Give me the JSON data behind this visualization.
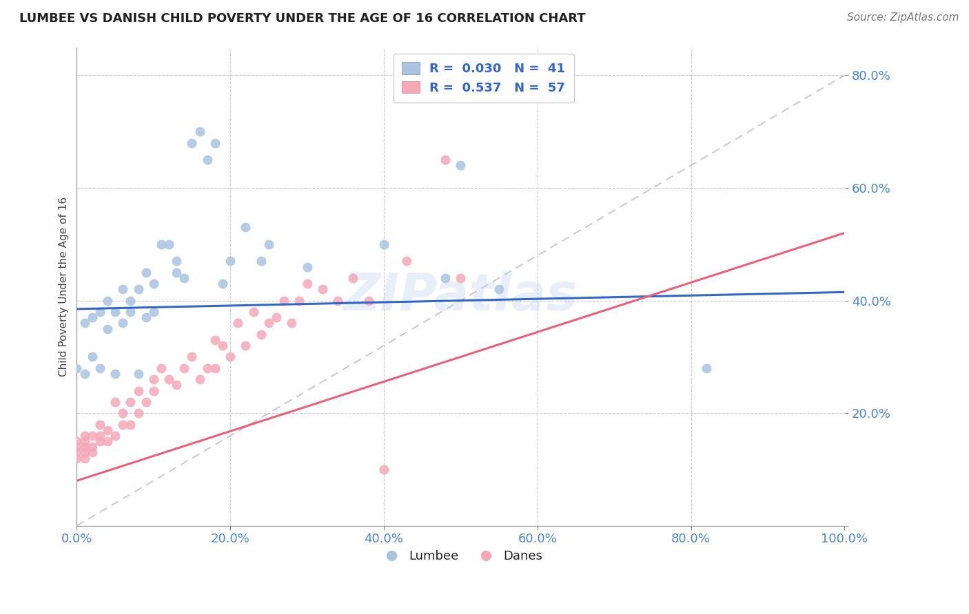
{
  "title": "LUMBEE VS DANISH CHILD POVERTY UNDER THE AGE OF 16 CORRELATION CHART",
  "source": "Source: ZipAtlas.com",
  "xlabel": "",
  "ylabel": "Child Poverty Under the Age of 16",
  "xlim": [
    0,
    1.0
  ],
  "ylim": [
    0.0,
    0.85
  ],
  "xticks": [
    0.0,
    0.2,
    0.4,
    0.6,
    0.8,
    1.0
  ],
  "yticks": [
    0.0,
    0.2,
    0.4,
    0.6,
    0.8
  ],
  "xticklabels": [
    "0.0%",
    "20.0%",
    "40.0%",
    "60.0%",
    "80.0%",
    "100.0%"
  ],
  "yticklabels": [
    "",
    "20.0%",
    "40.0%",
    "60.0%",
    "80.0%"
  ],
  "grid_color": "#cccccc",
  "background_color": "#ffffff",
  "watermark": "ZIPatlas",
  "lumbee_color": "#a8c4e0",
  "danes_color": "#f4a8b8",
  "lumbee_line_color": "#3366cc",
  "danes_line_color": "#e8607a",
  "diagonal_color": "#bbbbbb",
  "lumbee_R": "0.030",
  "lumbee_N": "41",
  "danes_R": "0.537",
  "danes_N": "57",
  "lumbee_line_start_y": 0.385,
  "lumbee_line_end_y": 0.415,
  "danes_line_start_y": 0.08,
  "danes_line_end_y": 0.52,
  "lumbee_x": [
    0.0,
    0.01,
    0.01,
    0.02,
    0.02,
    0.03,
    0.03,
    0.04,
    0.04,
    0.05,
    0.05,
    0.06,
    0.06,
    0.07,
    0.07,
    0.08,
    0.08,
    0.09,
    0.09,
    0.1,
    0.1,
    0.11,
    0.12,
    0.13,
    0.13,
    0.14,
    0.15,
    0.16,
    0.17,
    0.18,
    0.19,
    0.2,
    0.22,
    0.24,
    0.25,
    0.3,
    0.4,
    0.48,
    0.5,
    0.55,
    0.82
  ],
  "lumbee_y": [
    0.28,
    0.27,
    0.36,
    0.3,
    0.37,
    0.28,
    0.38,
    0.35,
    0.4,
    0.27,
    0.38,
    0.36,
    0.42,
    0.38,
    0.4,
    0.27,
    0.42,
    0.37,
    0.45,
    0.38,
    0.43,
    0.5,
    0.5,
    0.45,
    0.47,
    0.44,
    0.68,
    0.7,
    0.65,
    0.68,
    0.43,
    0.47,
    0.53,
    0.47,
    0.5,
    0.46,
    0.5,
    0.44,
    0.64,
    0.42,
    0.28
  ],
  "danes_x": [
    0.0,
    0.0,
    0.0,
    0.0,
    0.01,
    0.01,
    0.01,
    0.01,
    0.01,
    0.02,
    0.02,
    0.02,
    0.03,
    0.03,
    0.03,
    0.04,
    0.04,
    0.05,
    0.05,
    0.06,
    0.06,
    0.07,
    0.07,
    0.08,
    0.08,
    0.09,
    0.1,
    0.1,
    0.11,
    0.12,
    0.13,
    0.14,
    0.15,
    0.16,
    0.17,
    0.18,
    0.18,
    0.19,
    0.2,
    0.21,
    0.22,
    0.23,
    0.24,
    0.25,
    0.26,
    0.27,
    0.28,
    0.29,
    0.3,
    0.32,
    0.34,
    0.36,
    0.38,
    0.4,
    0.43,
    0.48,
    0.5
  ],
  "danes_y": [
    0.12,
    0.13,
    0.14,
    0.15,
    0.12,
    0.13,
    0.14,
    0.15,
    0.16,
    0.13,
    0.14,
    0.16,
    0.15,
    0.16,
    0.18,
    0.15,
    0.17,
    0.16,
    0.22,
    0.18,
    0.2,
    0.18,
    0.22,
    0.2,
    0.24,
    0.22,
    0.24,
    0.26,
    0.28,
    0.26,
    0.25,
    0.28,
    0.3,
    0.26,
    0.28,
    0.28,
    0.33,
    0.32,
    0.3,
    0.36,
    0.32,
    0.38,
    0.34,
    0.36,
    0.37,
    0.4,
    0.36,
    0.4,
    0.43,
    0.42,
    0.4,
    0.44,
    0.4,
    0.1,
    0.47,
    0.65,
    0.44
  ],
  "tick_color": "#4d86c8",
  "tick_fontsize": 13,
  "title_fontsize": 13,
  "ylabel_fontsize": 11,
  "legend_fontsize": 13,
  "source_fontsize": 11
}
